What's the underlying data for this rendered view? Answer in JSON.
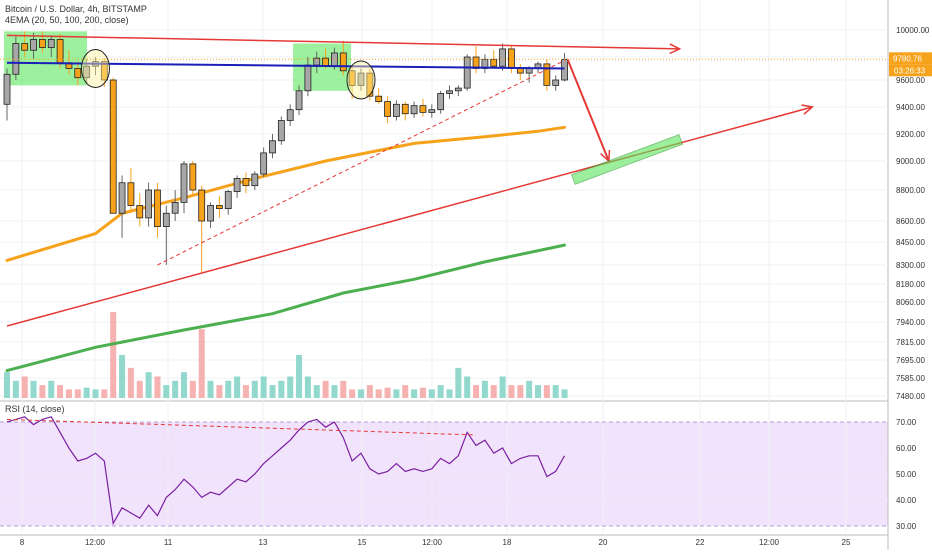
{
  "header": {
    "symbol": "Bitcoin / U.S. Dollar, 4h, BITSTAMP",
    "indicator": "4EMA (20, 50, 100, 200, close)",
    "rsi_label": "RSI (14, close)"
  },
  "price_tags": {
    "last_price": "9780.76",
    "countdown": "03:26:33",
    "colors": {
      "tag_bg": "#f7a21b",
      "tag_text": "#ffffff"
    }
  },
  "colors": {
    "bull": "#a7a7a7",
    "bear": "#f7a21b",
    "ema50": "#f7a21b",
    "ema200": "#4caf50",
    "trend_red": "#e53935",
    "resistance_blue": "#1b1fb8",
    "highlight_green": "#5ce65c",
    "rsi_line": "#7b1fa2",
    "rsi_band": "#f1e3fb",
    "volume_up": "#7fd1c3",
    "volume_down": "#f4a3a3"
  },
  "chart_data": [
    {
      "type": "candlestick",
      "title": "Bitcoin / U.S. Dollar, 4h, BITSTAMP",
      "price_axis_ticks": [
        10000,
        9800,
        9600,
        9400,
        9200,
        9000,
        8800,
        8600,
        8450,
        8300,
        8180,
        8060,
        7940,
        7815,
        7695,
        7585,
        7480
      ],
      "price_axis_labels": [
        "10000.00",
        "9800.00",
        "9600.00",
        "9400.00",
        "9200.00",
        "9000.00",
        "8800.00",
        "8600.00",
        "8450.00",
        "8300.00",
        "8180.00",
        "8060.00",
        "7940.00",
        "7815.00",
        "7695.00",
        "7585.00",
        "7480.00"
      ],
      "time_axis_labels": [
        "8",
        "12:00",
        "11",
        "13",
        "15",
        "12:00",
        "18",
        "20",
        "22",
        "12:00",
        "25"
      ],
      "ylim": [
        7480,
        10060
      ],
      "candles": [
        {
          "o": 9420,
          "h": 9700,
          "l": 9300,
          "c": 9650
        },
        {
          "o": 9650,
          "h": 9950,
          "l": 9600,
          "c": 9900
        },
        {
          "o": 9900,
          "h": 9990,
          "l": 9800,
          "c": 9850
        },
        {
          "o": 9850,
          "h": 9980,
          "l": 9780,
          "c": 9930
        },
        {
          "o": 9930,
          "h": 9990,
          "l": 9830,
          "c": 9870
        },
        {
          "o": 9870,
          "h": 9960,
          "l": 9800,
          "c": 9930
        },
        {
          "o": 9930,
          "h": 9970,
          "l": 9700,
          "c": 9750
        },
        {
          "o": 9750,
          "h": 9850,
          "l": 9650,
          "c": 9700
        },
        {
          "o": 9700,
          "h": 9760,
          "l": 9560,
          "c": 9620
        },
        {
          "o": 9620,
          "h": 9780,
          "l": 9580,
          "c": 9720
        },
        {
          "o": 9720,
          "h": 9800,
          "l": 9640,
          "c": 9760
        },
        {
          "o": 9760,
          "h": 9790,
          "l": 9550,
          "c": 9600
        },
        {
          "o": 9600,
          "h": 9620,
          "l": 8650,
          "c": 8650
        },
        {
          "o": 8650,
          "h": 8900,
          "l": 8480,
          "c": 8850
        },
        {
          "o": 8850,
          "h": 8950,
          "l": 8650,
          "c": 8700
        },
        {
          "o": 8700,
          "h": 8780,
          "l": 8560,
          "c": 8620
        },
        {
          "o": 8620,
          "h": 8850,
          "l": 8560,
          "c": 8800
        },
        {
          "o": 8800,
          "h": 8850,
          "l": 8480,
          "c": 8560
        },
        {
          "o": 8560,
          "h": 8700,
          "l": 8300,
          "c": 8650
        },
        {
          "o": 8650,
          "h": 8800,
          "l": 8600,
          "c": 8720
        },
        {
          "o": 8720,
          "h": 9000,
          "l": 8650,
          "c": 8980
        },
        {
          "o": 8980,
          "h": 9000,
          "l": 8760,
          "c": 8800
        },
        {
          "o": 8800,
          "h": 8830,
          "l": 8250,
          "c": 8600
        },
        {
          "o": 8600,
          "h": 8720,
          "l": 8550,
          "c": 8700
        },
        {
          "o": 8700,
          "h": 8760,
          "l": 8620,
          "c": 8680
        },
        {
          "o": 8680,
          "h": 8800,
          "l": 8640,
          "c": 8790
        },
        {
          "o": 8790,
          "h": 8900,
          "l": 8750,
          "c": 8880
        },
        {
          "o": 8880,
          "h": 8920,
          "l": 8780,
          "c": 8830
        },
        {
          "o": 8830,
          "h": 8930,
          "l": 8800,
          "c": 8910
        },
        {
          "o": 8910,
          "h": 9100,
          "l": 8890,
          "c": 9060
        },
        {
          "o": 9060,
          "h": 9200,
          "l": 9020,
          "c": 9150
        },
        {
          "o": 9150,
          "h": 9330,
          "l": 9120,
          "c": 9300
        },
        {
          "o": 9300,
          "h": 9420,
          "l": 9260,
          "c": 9380
        },
        {
          "o": 9380,
          "h": 9560,
          "l": 9340,
          "c": 9520
        },
        {
          "o": 9520,
          "h": 9800,
          "l": 9480,
          "c": 9730
        },
        {
          "o": 9730,
          "h": 9840,
          "l": 9660,
          "c": 9790
        },
        {
          "o": 9790,
          "h": 9860,
          "l": 9700,
          "c": 9720
        },
        {
          "o": 9720,
          "h": 9870,
          "l": 9690,
          "c": 9830
        },
        {
          "o": 9830,
          "h": 9920,
          "l": 9640,
          "c": 9680
        },
        {
          "o": 9680,
          "h": 9720,
          "l": 9460,
          "c": 9560
        },
        {
          "o": 9560,
          "h": 9700,
          "l": 9520,
          "c": 9660
        },
        {
          "o": 9660,
          "h": 9700,
          "l": 9450,
          "c": 9480
        },
        {
          "o": 9480,
          "h": 9540,
          "l": 9420,
          "c": 9440
        },
        {
          "o": 9440,
          "h": 9480,
          "l": 9280,
          "c": 9330
        },
        {
          "o": 9330,
          "h": 9450,
          "l": 9300,
          "c": 9420
        },
        {
          "o": 9420,
          "h": 9440,
          "l": 9300,
          "c": 9350
        },
        {
          "o": 9350,
          "h": 9440,
          "l": 9320,
          "c": 9410
        },
        {
          "o": 9410,
          "h": 9460,
          "l": 9330,
          "c": 9360
        },
        {
          "o": 9360,
          "h": 9420,
          "l": 9320,
          "c": 9380
        },
        {
          "o": 9380,
          "h": 9520,
          "l": 9350,
          "c": 9500
        },
        {
          "o": 9500,
          "h": 9560,
          "l": 9460,
          "c": 9520
        },
        {
          "o": 9520,
          "h": 9560,
          "l": 9480,
          "c": 9540
        },
        {
          "o": 9540,
          "h": 9820,
          "l": 9520,
          "c": 9800
        },
        {
          "o": 9800,
          "h": 9880,
          "l": 9660,
          "c": 9700
        },
        {
          "o": 9700,
          "h": 9820,
          "l": 9660,
          "c": 9780
        },
        {
          "o": 9780,
          "h": 9850,
          "l": 9700,
          "c": 9720
        },
        {
          "o": 9720,
          "h": 9900,
          "l": 9680,
          "c": 9860
        },
        {
          "o": 9860,
          "h": 9890,
          "l": 9660,
          "c": 9700
        },
        {
          "o": 9700,
          "h": 9740,
          "l": 9600,
          "c": 9660
        },
        {
          "o": 9660,
          "h": 9720,
          "l": 9580,
          "c": 9700
        },
        {
          "o": 9700,
          "h": 9760,
          "l": 9660,
          "c": 9740
        },
        {
          "o": 9740,
          "h": 9780,
          "l": 9520,
          "c": 9560
        },
        {
          "o": 9560,
          "h": 9640,
          "l": 9520,
          "c": 9600
        },
        {
          "o": 9600,
          "h": 9830,
          "l": 9590,
          "c": 9780
        }
      ],
      "ema50": [
        [
          0,
          8330
        ],
        [
          10,
          8510
        ],
        [
          13,
          8650
        ],
        [
          20,
          8750
        ],
        [
          28,
          8880
        ],
        [
          36,
          9000
        ],
        [
          46,
          9130
        ],
        [
          54,
          9180
        ],
        [
          60,
          9220
        ],
        [
          63,
          9250
        ]
      ],
      "ema200": [
        [
          0,
          7630
        ],
        [
          10,
          7780
        ],
        [
          20,
          7890
        ],
        [
          30,
          7990
        ],
        [
          38,
          8120
        ],
        [
          46,
          8210
        ],
        [
          54,
          8320
        ],
        [
          63,
          8430
        ]
      ],
      "annotations": {
        "resistance_line": [
          [
            0,
            9750
          ],
          [
            63,
            9700
          ]
        ],
        "upper_channel": [
          [
            0,
            9960
          ],
          [
            76,
            9860
          ]
        ],
        "lower_channel": [
          [
            0,
            7915
          ],
          [
            91,
            9400
          ]
        ],
        "dashed_support": [
          [
            17,
            8300
          ],
          [
            63,
            9770
          ]
        ],
        "projection_arrow": [
          [
            63,
            9780
          ],
          [
            68,
            9000
          ]
        ],
        "target_box": [
          [
            64,
            8900
          ],
          [
            75,
            9100
          ]
        ]
      }
    },
    {
      "type": "bar",
      "title": "Volume",
      "values": [
        3,
        2,
        2.5,
        2,
        1.5,
        2,
        1.5,
        1,
        1,
        1.2,
        1,
        1,
        10,
        5,
        3.5,
        2,
        3,
        2.5,
        1.5,
        2,
        3,
        2,
        8,
        2,
        1.5,
        2,
        2.5,
        1.5,
        2,
        2.5,
        1.5,
        2,
        2.5,
        5,
        2.5,
        1.5,
        2,
        1.5,
        2,
        1,
        1,
        1.5,
        1,
        1.2,
        1,
        1.5,
        1,
        1.2,
        1,
        1.5,
        1,
        3.5,
        2.5,
        1.5,
        2,
        1.5,
        2.5,
        1.5,
        1.5,
        2,
        1.5,
        1.5,
        1.5,
        1
      ]
    },
    {
      "type": "line",
      "title": "RSI (14, close)",
      "axis_labels": [
        "70.00",
        "60.00",
        "50.00",
        "40.00",
        "30.00"
      ],
      "ylim": [
        27,
        75
      ],
      "band": [
        30,
        70
      ],
      "values": [
        70,
        71,
        72,
        69,
        71,
        72,
        66,
        60,
        55,
        56,
        58,
        55,
        31,
        37,
        35,
        33,
        38,
        34,
        41,
        44,
        48,
        45,
        41,
        43,
        42,
        45,
        48,
        47,
        50,
        54,
        57,
        60,
        63,
        67,
        70,
        71,
        68,
        70,
        64,
        55,
        58,
        52,
        50,
        51,
        54,
        51,
        52,
        51,
        52,
        56,
        54,
        57,
        66,
        61,
        63,
        58,
        60,
        54,
        56,
        57,
        57,
        49,
        51,
        57
      ],
      "divergence_line": [
        [
          0,
          71
        ],
        [
          53,
          65
        ]
      ]
    }
  ]
}
